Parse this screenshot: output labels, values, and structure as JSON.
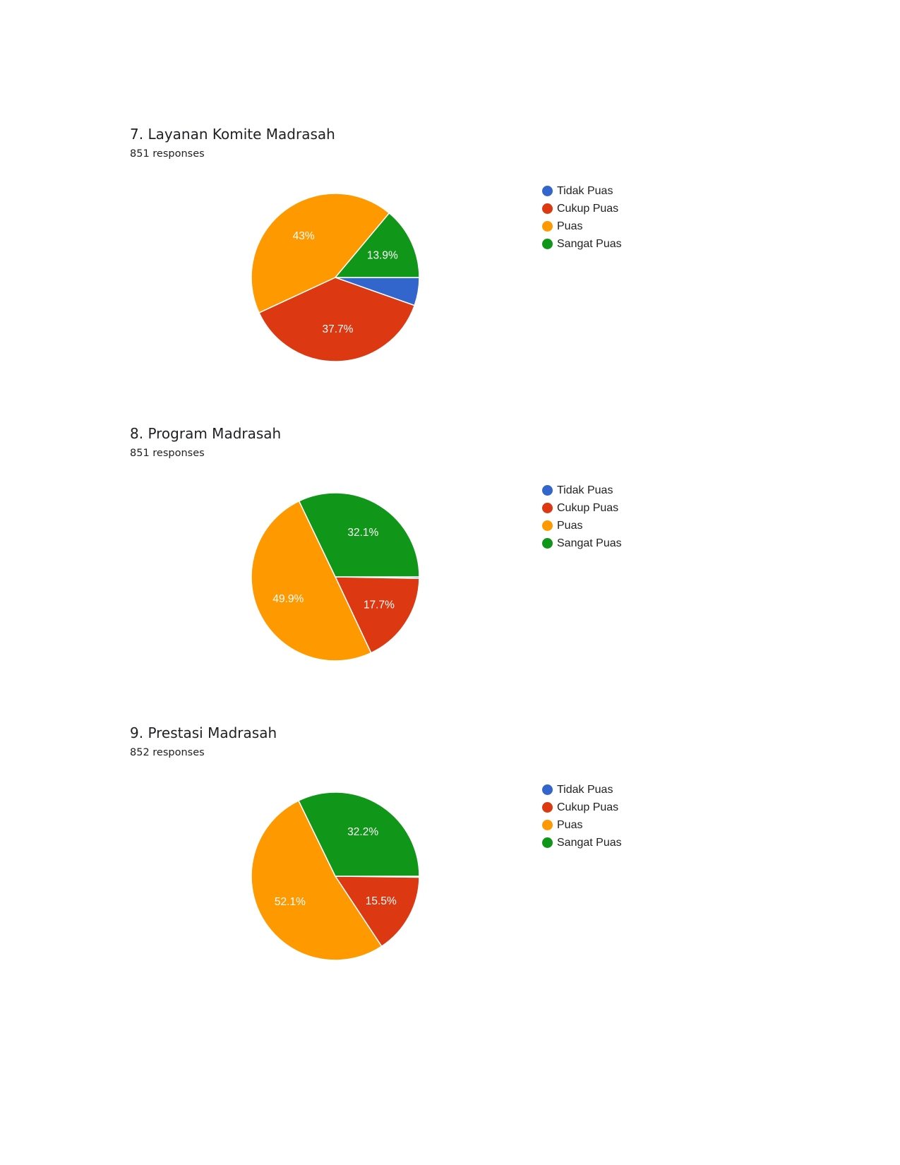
{
  "chart_data": [
    {
      "type": "pie",
      "title": "7. Layanan Komite Madrasah",
      "subtitle": "851 responses",
      "categories": [
        "Tidak Puas",
        "Cukup Puas",
        "Puas",
        "Sangat Puas"
      ],
      "values": [
        5.4,
        37.7,
        43,
        13.9
      ],
      "data_labels": [
        "",
        "37.7%",
        "43%",
        "13.9%"
      ],
      "colors": [
        "#3366cc",
        "#dc3912",
        "#ff9900",
        "#109618"
      ],
      "legend": "right"
    },
    {
      "type": "pie",
      "title": "8. Program Madrasah",
      "subtitle": "851 responses",
      "categories": [
        "Tidak Puas",
        "Cukup Puas",
        "Puas",
        "Sangat Puas"
      ],
      "values": [
        0.3,
        17.7,
        49.9,
        32.1
      ],
      "data_labels": [
        "",
        "17.7%",
        "49.9%",
        "32.1%"
      ],
      "colors": [
        "#3366cc",
        "#dc3912",
        "#ff9900",
        "#109618"
      ],
      "legend": "right"
    },
    {
      "type": "pie",
      "title": "9. Prestasi Madrasah",
      "subtitle": "852 responses",
      "categories": [
        "Tidak Puas",
        "Cukup Puas",
        "Puas",
        "Sangat Puas"
      ],
      "values": [
        0.2,
        15.5,
        52.1,
        32.2
      ],
      "data_labels": [
        "",
        "15.5%",
        "52.1%",
        "32.2%"
      ],
      "colors": [
        "#3366cc",
        "#dc3912",
        "#ff9900",
        "#109618"
      ],
      "legend": "right"
    }
  ]
}
